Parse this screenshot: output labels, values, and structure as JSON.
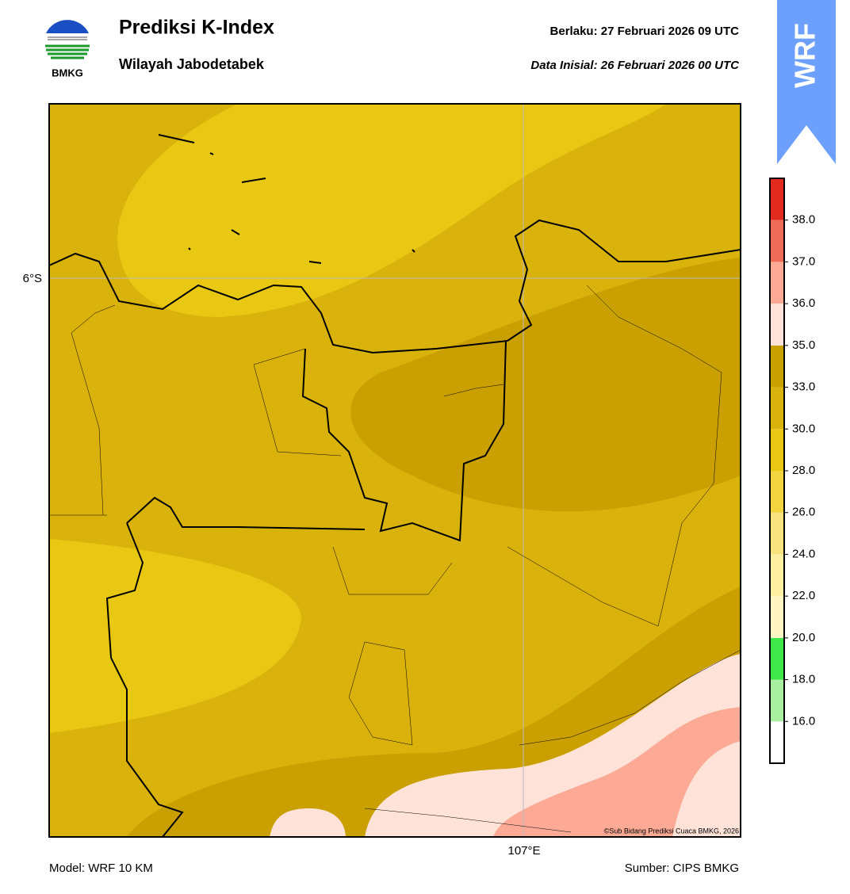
{
  "header": {
    "logo_text": "BMKG",
    "title": "Prediksi K-Index",
    "subtitle": "Wilayah Jabodetabek",
    "valid": "Berlaku:  27 Februari 2026 09 UTC",
    "init": "Data Inisial:  26 Februari 2026 00 UTC",
    "badge": "WRF"
  },
  "map": {
    "lat_label": "6°S",
    "lon_label": "107°E",
    "copyright": "©Sub Bidang Prediksi Cuaca BMKG, 2026"
  },
  "colorbar": {
    "colors": [
      "#ffffff",
      "#a8f0a0",
      "#3ee84a",
      "#fff6c4",
      "#ffefa0",
      "#f8e27e",
      "#f2d43e",
      "#e9c813",
      "#dab20c",
      "#c9a000",
      "#ffe3d8",
      "#fcaa96",
      "#f06a58",
      "#e22a1e"
    ],
    "ticks": [
      {
        "value": 16,
        "label": "16.0"
      },
      {
        "value": 18,
        "label": "18.0"
      },
      {
        "value": 20,
        "label": "20.0"
      },
      {
        "value": 22,
        "label": "22.0"
      },
      {
        "value": 24,
        "label": "24.0"
      },
      {
        "value": 26,
        "label": "26.0"
      },
      {
        "value": 28,
        "label": "28.0"
      },
      {
        "value": 30,
        "label": "30.0"
      },
      {
        "value": 33,
        "label": "33.0"
      },
      {
        "value": 35,
        "label": "35.0"
      },
      {
        "value": 36,
        "label": "36.0"
      },
      {
        "value": 37,
        "label": "37.0"
      },
      {
        "value": 38,
        "label": "38.0"
      }
    ]
  },
  "footer": {
    "model": "Model: WRF 10 KM",
    "source": "Sumber: CIPS BMKG"
  }
}
